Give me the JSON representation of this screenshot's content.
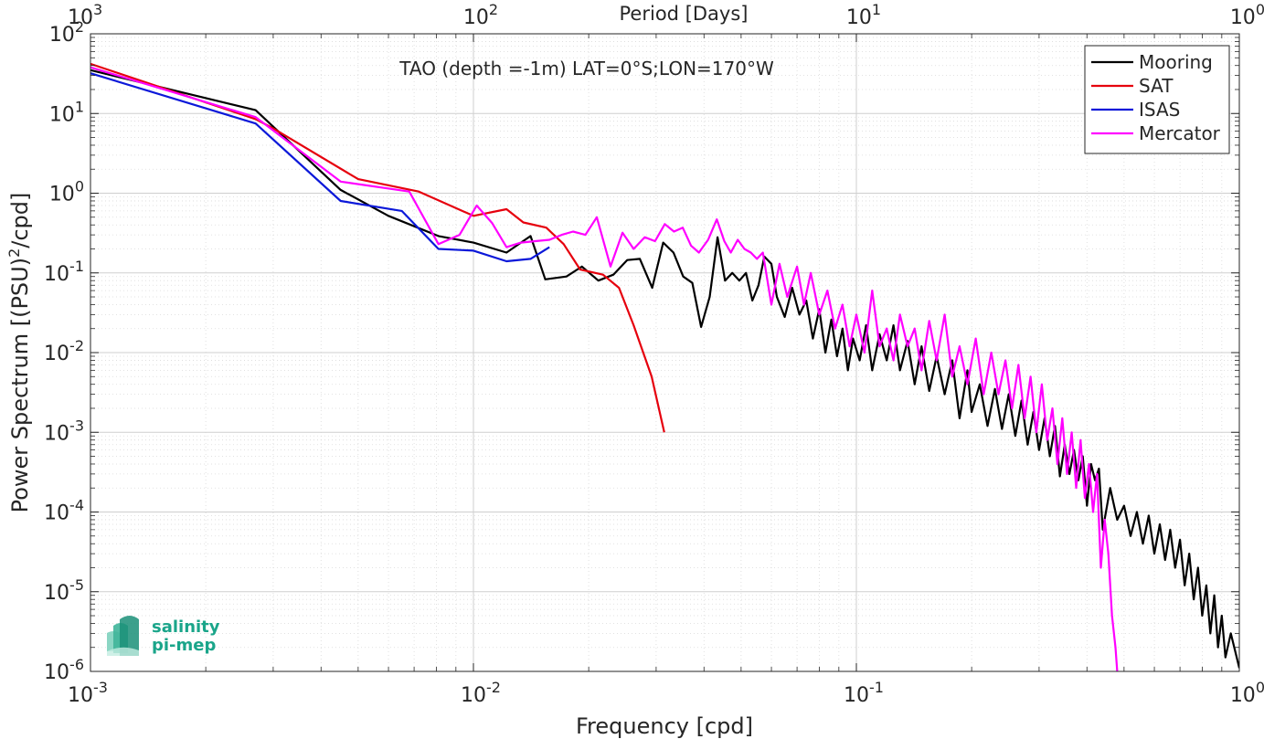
{
  "chart_data": {
    "type": "line",
    "title": "TAO (depth =-1m) LAT=0°S;LON=170°W",
    "xlabel": "Frequency [cpd]",
    "ylabel_main": "Power Spectrum [(PSU)",
    "ylabel_sup": "2",
    "ylabel_tail": "/cpd]",
    "top_xlabel": "Period [Days]",
    "x_scale": "log",
    "y_scale": "log",
    "xlim": [
      0.001,
      1
    ],
    "ylim": [
      1e-06,
      100
    ],
    "grid": true,
    "legend_position": "top-right",
    "x_ticks": [
      {
        "v": 0.001,
        "base": "10",
        "exp": "-3"
      },
      {
        "v": 0.01,
        "base": "10",
        "exp": "-2"
      },
      {
        "v": 0.1,
        "base": "10",
        "exp": "-1"
      },
      {
        "v": 1,
        "base": "10",
        "exp": "0"
      }
    ],
    "top_ticks": [
      {
        "v": 0.001,
        "base": "10",
        "exp": "3"
      },
      {
        "v": 0.01,
        "base": "10",
        "exp": "2"
      },
      {
        "v": 0.1,
        "base": "10",
        "exp": "1"
      },
      {
        "v": 1,
        "base": "10",
        "exp": "0"
      }
    ],
    "y_ticks": [
      {
        "v": 100,
        "base": "10",
        "exp": "2"
      },
      {
        "v": 10,
        "base": "10",
        "exp": "1"
      },
      {
        "v": 1,
        "base": "10",
        "exp": "0"
      },
      {
        "v": 0.1,
        "base": "10",
        "exp": "-1"
      },
      {
        "v": 0.01,
        "base": "10",
        "exp": "-2"
      },
      {
        "v": 0.001,
        "base": "10",
        "exp": "-3"
      },
      {
        "v": 0.0001,
        "base": "10",
        "exp": "-4"
      },
      {
        "v": 1e-05,
        "base": "10",
        "exp": "-5"
      },
      {
        "v": 1e-06,
        "base": "10",
        "exp": "-6"
      }
    ],
    "series": [
      {
        "name": "Mooring",
        "color": "#000000",
        "points": [
          [
            0.001,
            35
          ],
          [
            0.0027,
            11
          ],
          [
            0.0045,
            1.1
          ],
          [
            0.006,
            0.52
          ],
          [
            0.0081,
            0.29
          ],
          [
            0.01,
            0.24
          ],
          [
            0.0122,
            0.18
          ],
          [
            0.0141,
            0.29
          ],
          [
            0.0154,
            0.083
          ],
          [
            0.0175,
            0.09
          ],
          [
            0.0192,
            0.12
          ],
          [
            0.0212,
            0.08
          ],
          [
            0.0232,
            0.095
          ],
          [
            0.0252,
            0.145
          ],
          [
            0.0272,
            0.15
          ],
          [
            0.0293,
            0.065
          ],
          [
            0.0313,
            0.24
          ],
          [
            0.0333,
            0.18
          ],
          [
            0.0353,
            0.09
          ],
          [
            0.0373,
            0.075
          ],
          [
            0.0393,
            0.021
          ],
          [
            0.0414,
            0.05
          ],
          [
            0.0434,
            0.28
          ],
          [
            0.0454,
            0.08
          ],
          [
            0.0474,
            0.1
          ],
          [
            0.0495,
            0.08
          ],
          [
            0.0515,
            0.1
          ],
          [
            0.0535,
            0.045
          ],
          [
            0.0555,
            0.07
          ],
          [
            0.0575,
            0.16
          ],
          [
            0.06,
            0.13
          ],
          [
            0.062,
            0.05
          ],
          [
            0.065,
            0.028
          ],
          [
            0.068,
            0.065
          ],
          [
            0.071,
            0.03
          ],
          [
            0.074,
            0.045
          ],
          [
            0.077,
            0.015
          ],
          [
            0.08,
            0.035
          ],
          [
            0.083,
            0.01
          ],
          [
            0.086,
            0.026
          ],
          [
            0.089,
            0.009
          ],
          [
            0.092,
            0.02
          ],
          [
            0.095,
            0.006
          ],
          [
            0.098,
            0.015
          ],
          [
            0.102,
            0.008
          ],
          [
            0.106,
            0.022
          ],
          [
            0.11,
            0.006
          ],
          [
            0.115,
            0.017
          ],
          [
            0.12,
            0.008
          ],
          [
            0.125,
            0.022
          ],
          [
            0.13,
            0.006
          ],
          [
            0.136,
            0.014
          ],
          [
            0.142,
            0.004
          ],
          [
            0.148,
            0.012
          ],
          [
            0.155,
            0.0033
          ],
          [
            0.162,
            0.009
          ],
          [
            0.17,
            0.003
          ],
          [
            0.178,
            0.008
          ],
          [
            0.186,
            0.0015
          ],
          [
            0.195,
            0.006
          ],
          [
            0.2,
            0.0018
          ],
          [
            0.21,
            0.004
          ],
          [
            0.22,
            0.0012
          ],
          [
            0.23,
            0.0035
          ],
          [
            0.24,
            0.0011
          ],
          [
            0.25,
            0.003
          ],
          [
            0.26,
            0.0009
          ],
          [
            0.27,
            0.0025
          ],
          [
            0.28,
            0.0007
          ],
          [
            0.29,
            0.0018
          ],
          [
            0.3,
            0.0006
          ],
          [
            0.31,
            0.0015
          ],
          [
            0.32,
            0.0005
          ],
          [
            0.33,
            0.0012
          ],
          [
            0.34,
            0.00028
          ],
          [
            0.35,
            0.0007
          ],
          [
            0.36,
            0.0003
          ],
          [
            0.37,
            0.0006
          ],
          [
            0.38,
            0.00025
          ],
          [
            0.39,
            0.0005
          ],
          [
            0.4,
            0.00012
          ],
          [
            0.41,
            0.0004
          ],
          [
            0.42,
            0.00025
          ],
          [
            0.43,
            0.00035
          ],
          [
            0.44,
            6e-05
          ],
          [
            0.46,
            0.0002
          ],
          [
            0.48,
            8e-05
          ],
          [
            0.5,
            0.00012
          ],
          [
            0.52,
            5e-05
          ],
          [
            0.54,
            0.0001
          ],
          [
            0.56,
            4e-05
          ],
          [
            0.58,
            9e-05
          ],
          [
            0.6,
            3e-05
          ],
          [
            0.62,
            7e-05
          ],
          [
            0.64,
            2.5e-05
          ],
          [
            0.66,
            6e-05
          ],
          [
            0.68,
            2e-05
          ],
          [
            0.7,
            4.5e-05
          ],
          [
            0.72,
            1.2e-05
          ],
          [
            0.74,
            3e-05
          ],
          [
            0.76,
            8e-06
          ],
          [
            0.78,
            2e-05
          ],
          [
            0.8,
            5e-06
          ],
          [
            0.82,
            1.2e-05
          ],
          [
            0.84,
            3e-06
          ],
          [
            0.86,
            9e-06
          ],
          [
            0.88,
            2e-06
          ],
          [
            0.9,
            5e-06
          ],
          [
            0.92,
            1.5e-06
          ],
          [
            0.95,
            3e-06
          ],
          [
            1,
            1.1e-06
          ]
        ]
      },
      {
        "name": "SAT",
        "color": "#e6000d",
        "points": [
          [
            0.001,
            42
          ],
          [
            0.0027,
            8.5
          ],
          [
            0.003,
            6.5
          ],
          [
            0.005,
            1.5
          ],
          [
            0.0072,
            1.05
          ],
          [
            0.01,
            0.52
          ],
          [
            0.0122,
            0.63
          ],
          [
            0.0135,
            0.43
          ],
          [
            0.0155,
            0.37
          ],
          [
            0.0172,
            0.23
          ],
          [
            0.019,
            0.11
          ],
          [
            0.0218,
            0.095
          ],
          [
            0.024,
            0.065
          ],
          [
            0.0262,
            0.022
          ],
          [
            0.0292,
            0.005
          ],
          [
            0.0315,
            0.001
          ]
        ]
      },
      {
        "name": "ISAS",
        "color": "#0b18d9",
        "points": [
          [
            0.001,
            32
          ],
          [
            0.0027,
            7.5
          ],
          [
            0.0045,
            0.8
          ],
          [
            0.0065,
            0.6
          ],
          [
            0.0081,
            0.2
          ],
          [
            0.01,
            0.19
          ],
          [
            0.0122,
            0.14
          ],
          [
            0.0141,
            0.15
          ],
          [
            0.0158,
            0.21
          ]
        ]
      },
      {
        "name": "Mercator",
        "color": "#ff00ff",
        "points": [
          [
            0.001,
            38
          ],
          [
            0.0027,
            9
          ],
          [
            0.0045,
            1.4
          ],
          [
            0.0068,
            1.05
          ],
          [
            0.0081,
            0.23
          ],
          [
            0.0092,
            0.3
          ],
          [
            0.0102,
            0.7
          ],
          [
            0.0112,
            0.42
          ],
          [
            0.0122,
            0.21
          ],
          [
            0.0133,
            0.24
          ],
          [
            0.0145,
            0.25
          ],
          [
            0.0158,
            0.26
          ],
          [
            0.017,
            0.3
          ],
          [
            0.0182,
            0.33
          ],
          [
            0.0196,
            0.3
          ],
          [
            0.021,
            0.5
          ],
          [
            0.0228,
            0.12
          ],
          [
            0.0245,
            0.32
          ],
          [
            0.0262,
            0.2
          ],
          [
            0.028,
            0.28
          ],
          [
            0.0298,
            0.25
          ],
          [
            0.0316,
            0.41
          ],
          [
            0.0334,
            0.33
          ],
          [
            0.0352,
            0.37
          ],
          [
            0.037,
            0.22
          ],
          [
            0.0388,
            0.18
          ],
          [
            0.041,
            0.26
          ],
          [
            0.0432,
            0.47
          ],
          [
            0.0452,
            0.25
          ],
          [
            0.047,
            0.18
          ],
          [
            0.049,
            0.26
          ],
          [
            0.051,
            0.2
          ],
          [
            0.053,
            0.18
          ],
          [
            0.055,
            0.15
          ],
          [
            0.057,
            0.18
          ],
          [
            0.06,
            0.04
          ],
          [
            0.063,
            0.13
          ],
          [
            0.066,
            0.05
          ],
          [
            0.07,
            0.12
          ],
          [
            0.073,
            0.04
          ],
          [
            0.076,
            0.1
          ],
          [
            0.08,
            0.03
          ],
          [
            0.084,
            0.06
          ],
          [
            0.088,
            0.02
          ],
          [
            0.092,
            0.04
          ],
          [
            0.096,
            0.012
          ],
          [
            0.1,
            0.03
          ],
          [
            0.105,
            0.01
          ],
          [
            0.11,
            0.06
          ],
          [
            0.115,
            0.012
          ],
          [
            0.12,
            0.02
          ],
          [
            0.125,
            0.008
          ],
          [
            0.13,
            0.03
          ],
          [
            0.136,
            0.012
          ],
          [
            0.142,
            0.02
          ],
          [
            0.148,
            0.006
          ],
          [
            0.155,
            0.025
          ],
          [
            0.162,
            0.008
          ],
          [
            0.17,
            0.03
          ],
          [
            0.178,
            0.005
          ],
          [
            0.186,
            0.012
          ],
          [
            0.195,
            0.004
          ],
          [
            0.205,
            0.015
          ],
          [
            0.215,
            0.003
          ],
          [
            0.225,
            0.01
          ],
          [
            0.235,
            0.003
          ],
          [
            0.245,
            0.008
          ],
          [
            0.255,
            0.002
          ],
          [
            0.265,
            0.007
          ],
          [
            0.275,
            0.0015
          ],
          [
            0.285,
            0.005
          ],
          [
            0.295,
            0.001
          ],
          [
            0.305,
            0.004
          ],
          [
            0.315,
            0.0008
          ],
          [
            0.325,
            0.002
          ],
          [
            0.335,
            0.0004
          ],
          [
            0.345,
            0.0015
          ],
          [
            0.355,
            0.0003
          ],
          [
            0.365,
            0.001
          ],
          [
            0.375,
            0.0002
          ],
          [
            0.385,
            0.0008
          ],
          [
            0.395,
            0.00015
          ],
          [
            0.405,
            0.0004
          ],
          [
            0.415,
            0.0001
          ],
          [
            0.425,
            0.0003
          ],
          [
            0.435,
            2e-05
          ],
          [
            0.445,
            8e-05
          ],
          [
            0.455,
            3e-05
          ],
          [
            0.465,
            5e-06
          ],
          [
            0.475,
            2e-06
          ],
          [
            0.48,
            1e-06
          ]
        ]
      }
    ]
  },
  "logo": {
    "line1": "salinity",
    "line2": "pi-mep",
    "color": "#1aa58a"
  }
}
